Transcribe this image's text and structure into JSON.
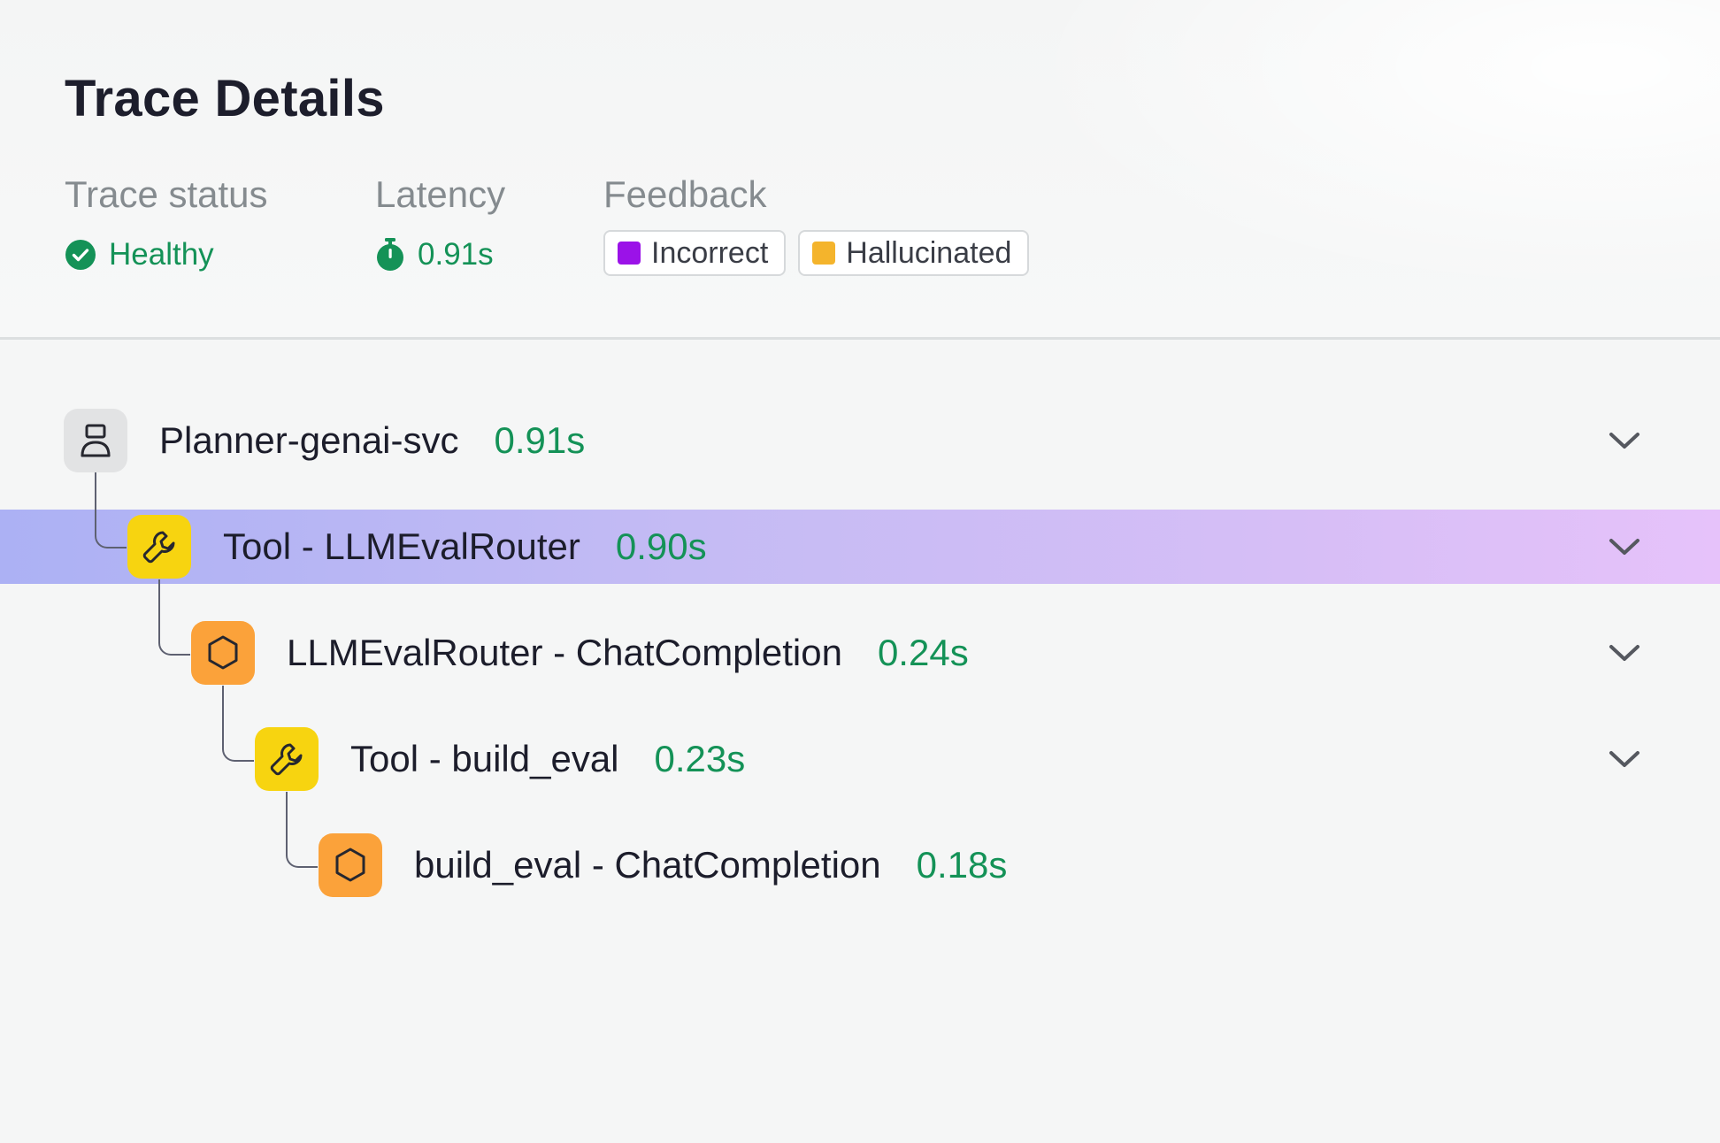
{
  "page": {
    "title": "Trace Details"
  },
  "summary": {
    "status": {
      "label": "Trace status",
      "value": "Healthy",
      "icon": "check-circle-icon",
      "color": "#149257"
    },
    "latency": {
      "label": "Latency",
      "value": "0.91s",
      "icon": "stopwatch-icon",
      "color": "#149257"
    },
    "feedback": {
      "label": "Feedback",
      "tags": [
        {
          "label": "Incorrect",
          "color": "#9b12e8"
        },
        {
          "label": "Hallucinated",
          "color": "#f4b42c"
        }
      ]
    }
  },
  "trace": {
    "spans": [
      {
        "name": "Planner-genai-svc",
        "duration": "0.91s",
        "kind": "service",
        "icon": "server-icon",
        "depth": 0,
        "expandable": true,
        "selected": false
      },
      {
        "name": "Tool - LLMEvalRouter",
        "duration": "0.90s",
        "kind": "tool",
        "icon": "wrench-icon",
        "depth": 1,
        "expandable": true,
        "selected": true
      },
      {
        "name": "LLMEvalRouter - ChatCompletion",
        "duration": "0.24s",
        "kind": "llm",
        "icon": "hexagon-icon",
        "depth": 2,
        "expandable": true,
        "selected": false
      },
      {
        "name": "Tool - build_eval",
        "duration": "0.23s",
        "kind": "tool",
        "icon": "wrench-icon",
        "depth": 3,
        "expandable": true,
        "selected": false
      },
      {
        "name": "build_eval - ChatCompletion",
        "duration": "0.18s",
        "kind": "llm",
        "icon": "hexagon-icon",
        "depth": 4,
        "expandable": false,
        "selected": false
      }
    ]
  },
  "colors": {
    "accent_green": "#149257",
    "tool_yellow": "#f7d410",
    "llm_orange": "#fba23a",
    "service_gray": "#e2e3e4",
    "selected_gradient_start": "#acb1f4",
    "selected_gradient_end": "#e6c2fa"
  }
}
